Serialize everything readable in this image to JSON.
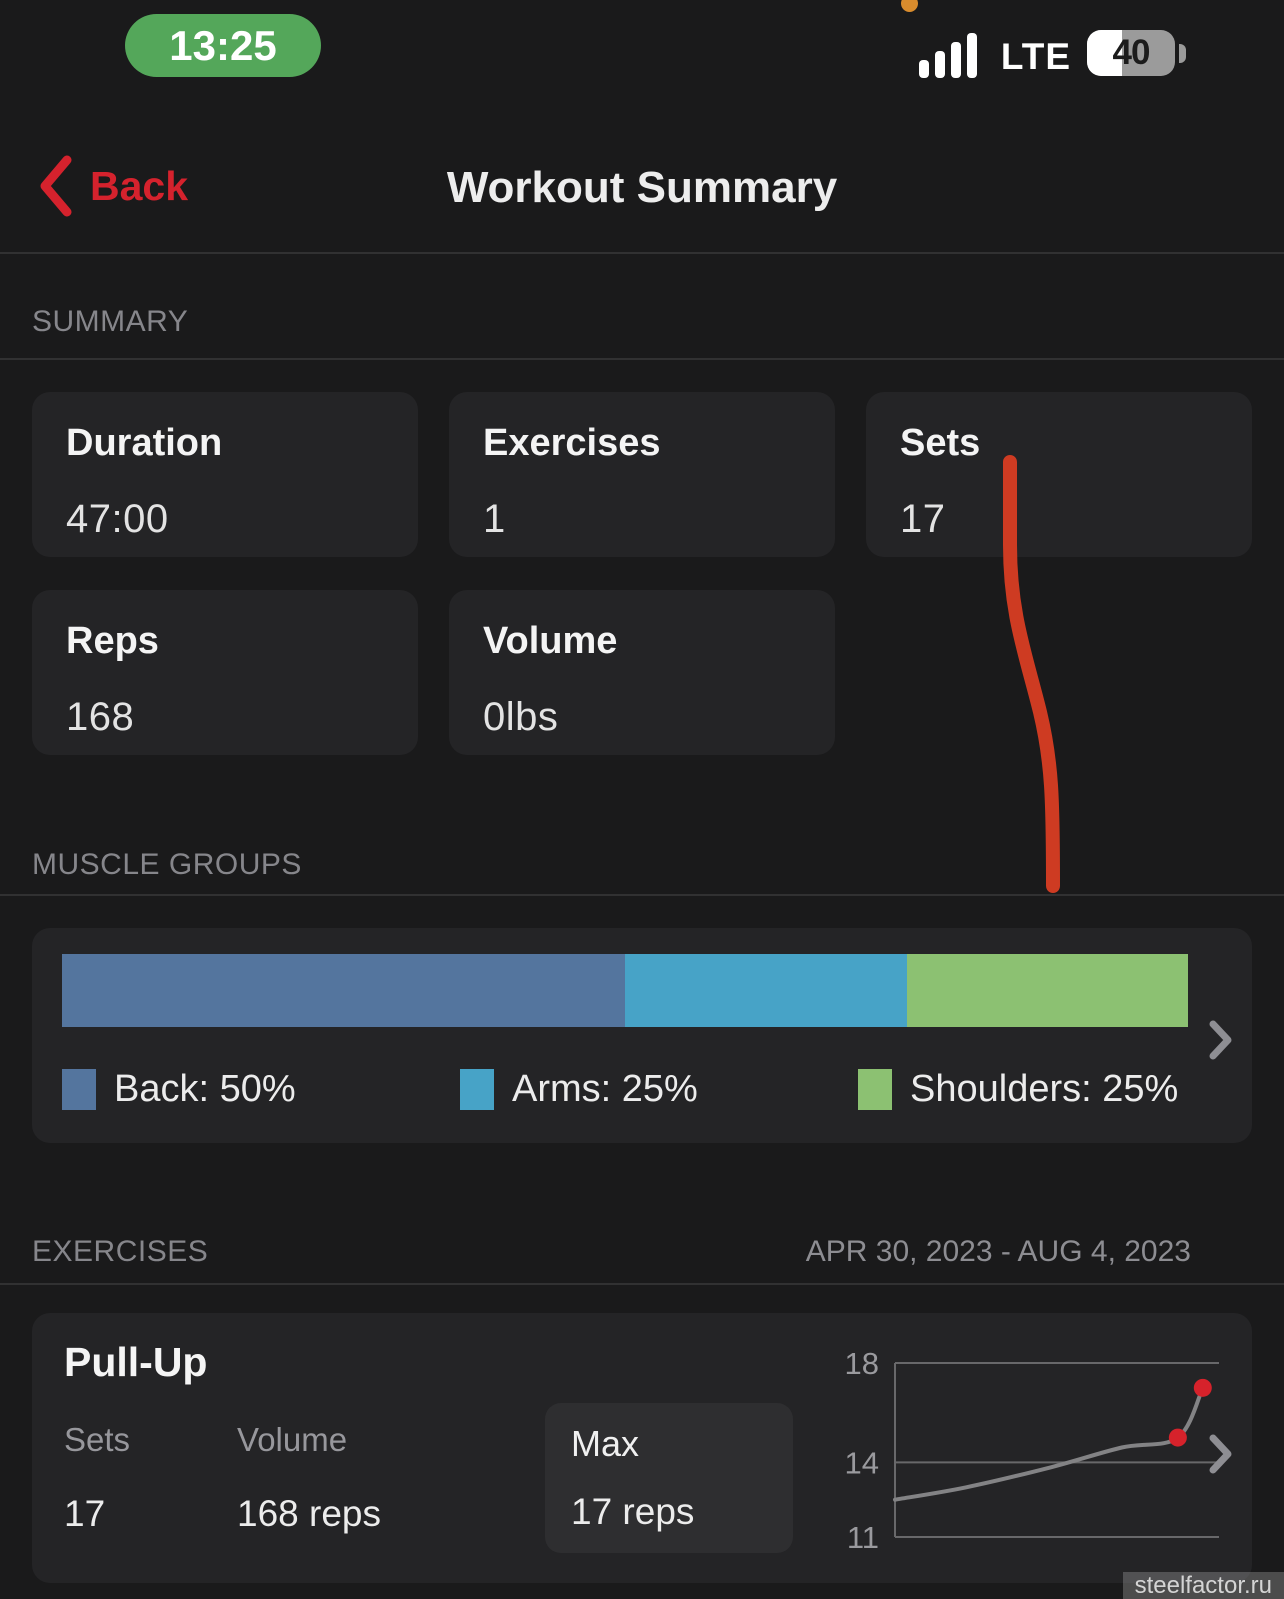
{
  "status": {
    "time": "13:25",
    "network": "LTE",
    "battery_percent": "40"
  },
  "nav": {
    "back_label": "Back",
    "title": "Workout Summary"
  },
  "sections": {
    "summary": "SUMMARY",
    "muscle_groups": "MUSCLE GROUPS",
    "exercises": "EXERCISES",
    "date_range": "APR 30, 2023 - AUG 4, 2023"
  },
  "summary_cards": [
    {
      "label": "Duration",
      "value": "47:00"
    },
    {
      "label": "Exercises",
      "value": "1"
    },
    {
      "label": "Sets",
      "value": "17"
    },
    {
      "label": "Reps",
      "value": "168"
    },
    {
      "label": "Volume",
      "value": "0lbs"
    }
  ],
  "muscle_groups": {
    "segments": [
      {
        "label": "Back",
        "percent": 50,
        "color": "#54759e"
      },
      {
        "label": "Arms",
        "percent": 25,
        "color": "#47a3c7"
      },
      {
        "label": "Shoulders",
        "percent": 25,
        "color": "#8cc172"
      }
    ]
  },
  "exercise": {
    "name": "Pull-Up",
    "stats": [
      {
        "label": "Sets",
        "value": "17"
      },
      {
        "label": "Volume",
        "value": "168 reps"
      }
    ],
    "max": {
      "label": "Max",
      "value": "17 reps"
    }
  },
  "chart_data": [
    {
      "type": "bar",
      "subtype": "stacked-horizontal",
      "title": "Muscle group distribution",
      "categories": [
        "Back",
        "Arms",
        "Shoulders"
      ],
      "values": [
        50,
        25,
        25
      ],
      "unit": "%",
      "colors": [
        "#54759e",
        "#47a3c7",
        "#8cc172"
      ],
      "legend": [
        "Back: 50%",
        "Arms: 25%",
        "Shoulders: 25%"
      ],
      "legend_position": "bottom"
    },
    {
      "type": "line",
      "title": "Pull-Up max reps trend",
      "x_range_label": "APR 30, 2023 - AUG 4, 2023",
      "ylim": [
        11,
        18
      ],
      "yticks": [
        18,
        14,
        11
      ],
      "grid": true,
      "points": [
        {
          "x": 0.0,
          "y": 12.5
        },
        {
          "x": 0.22,
          "y": 13.0
        },
        {
          "x": 0.48,
          "y": 13.8
        },
        {
          "x": 0.7,
          "y": 14.6
        },
        {
          "x": 0.873,
          "y": 15.0
        },
        {
          "x": 0.95,
          "y": 17.0
        }
      ],
      "highlight_last_n": 2,
      "line_color": "#838385",
      "dot_color": "#d6222b",
      "grid_color": "#68686a",
      "tick_color": "#9a9a9e"
    }
  ],
  "annotation": {
    "color": "#ce3b22"
  },
  "icons": {
    "chevron_color": "#8e8e93",
    "back_color": "#d5222d",
    "time_pill_color": "#54a75a",
    "recording_dot_color": "#d98c2d"
  },
  "watermark": "steelfactor.ru"
}
